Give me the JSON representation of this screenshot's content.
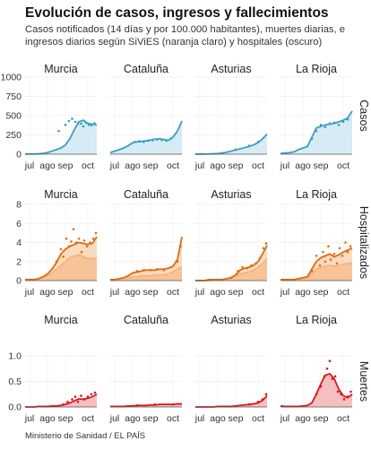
{
  "title": "Evolución de casos, ingresos y fallecimientos",
  "subtitle": "Casos notificados (14 días y por 100.000 habitantes), muertes diarias, e ingresos diarios según SiViES (naranja claro) y hospitales (oscuro)",
  "source": "Ministerio de Sanidad / EL PAÍS",
  "colors": {
    "casos": "#3a9fc0",
    "casos_fill": "#cfe8f1",
    "hosp_dark": "#e06c10",
    "hosp_light": "#f4b47f",
    "hosp_fill": "#f8cfa8",
    "muertes": "#d7191c",
    "muertes_fill": "#f6b3b5"
  },
  "chart_data": [
    {
      "type": "area",
      "row_label": "Casos",
      "x_ticks": [
        "jul",
        "ago",
        "sep",
        "oct"
      ],
      "y_ticks": [
        "0",
        "250",
        "500",
        "750",
        "1000"
      ],
      "ylim": [
        0,
        1000
      ],
      "panels": [
        {
          "region": "Murcia",
          "x": [
            0,
            10,
            20,
            30,
            40,
            50,
            60,
            70,
            80,
            90,
            100,
            110,
            120,
            130,
            140,
            150,
            160
          ],
          "values": [
            2,
            2,
            3,
            5,
            10,
            20,
            40,
            60,
            80,
            120,
            200,
            320,
            420,
            440,
            400,
            390,
            380
          ],
          "dots": [
            [
              75,
              300
            ],
            [
              90,
              380
            ],
            [
              98,
              430
            ],
            [
              105,
              460
            ],
            [
              112,
              420
            ],
            [
              118,
              400
            ],
            [
              125,
              395
            ],
            [
              130,
              360
            ],
            [
              136,
              410
            ],
            [
              142,
              380
            ],
            [
              148,
              375
            ],
            [
              155,
              400
            ]
          ]
        },
        {
          "region": "Cataluña",
          "x": [
            0,
            10,
            20,
            30,
            40,
            50,
            60,
            70,
            80,
            90,
            100,
            110,
            120,
            130,
            140,
            150,
            160
          ],
          "values": [
            20,
            40,
            60,
            80,
            110,
            150,
            160,
            165,
            175,
            185,
            195,
            200,
            190,
            180,
            220,
            300,
            430
          ],
          "dots": [
            [
              55,
              160
            ],
            [
              65,
              170
            ],
            [
              75,
              160
            ],
            [
              85,
              175
            ],
            [
              95,
              180
            ],
            [
              105,
              190
            ],
            [
              115,
              185
            ],
            [
              125,
              175
            ],
            [
              135,
              200
            ]
          ]
        },
        {
          "region": "Asturias",
          "x": [
            0,
            10,
            20,
            30,
            40,
            50,
            60,
            70,
            80,
            90,
            100,
            110,
            120,
            130,
            140,
            150,
            160
          ],
          "values": [
            1,
            1,
            2,
            3,
            5,
            8,
            15,
            25,
            40,
            55,
            70,
            85,
            100,
            120,
            150,
            200,
            260
          ],
          "dots": [
            [
              60,
              15
            ],
            [
              90,
              60
            ],
            [
              120,
              110
            ],
            [
              140,
              160
            ]
          ]
        },
        {
          "region": "La Rioja",
          "x": [
            0,
            10,
            20,
            30,
            40,
            50,
            60,
            70,
            80,
            90,
            100,
            110,
            120,
            130,
            140,
            150,
            160
          ],
          "values": [
            10,
            15,
            20,
            30,
            60,
            80,
            100,
            220,
            340,
            360,
            380,
            390,
            400,
            420,
            440,
            470,
            560
          ],
          "dots": [
            [
              70,
              200
            ],
            [
              80,
              300
            ],
            [
              90,
              380
            ],
            [
              100,
              350
            ],
            [
              110,
              400
            ],
            [
              120,
              410
            ],
            [
              130,
              380
            ],
            [
              140,
              420
            ],
            [
              150,
              450
            ]
          ]
        }
      ]
    },
    {
      "type": "area",
      "row_label": "Hospitalizados",
      "x_ticks": [
        "jul",
        "ago",
        "sep",
        "oct"
      ],
      "y_ticks": [
        "0",
        "2",
        "4",
        "6",
        "8"
      ],
      "ylim": [
        0,
        8
      ],
      "panels": [
        {
          "region": "Murcia",
          "x": [
            0,
            10,
            20,
            30,
            40,
            50,
            60,
            70,
            80,
            90,
            100,
            110,
            120,
            130,
            140,
            150,
            160
          ],
          "light": [
            0.1,
            0.1,
            0.1,
            0.2,
            0.3,
            0.5,
            0.8,
            1.2,
            1.6,
            2.0,
            2.4,
            2.6,
            2.7,
            2.5,
            2.3,
            2.3,
            2.4
          ],
          "dark": [
            0.1,
            0.1,
            0.1,
            0.2,
            0.4,
            0.7,
            1.2,
            1.9,
            2.8,
            3.3,
            3.6,
            3.8,
            4.0,
            3.9,
            3.8,
            3.9,
            4.6
          ],
          "dots": [
            [
              70,
              2.0
            ],
            [
              80,
              3.3
            ],
            [
              85,
              2.5
            ],
            [
              92,
              4.4
            ],
            [
              98,
              3.6
            ],
            [
              103,
              4.1
            ],
            [
              108,
              5.4
            ],
            [
              114,
              4.0
            ],
            [
              120,
              4.4
            ],
            [
              126,
              3.0
            ],
            [
              132,
              4.2
            ],
            [
              138,
              3.6
            ],
            [
              145,
              4.0
            ],
            [
              152,
              4.4
            ],
            [
              158,
              5.0
            ]
          ]
        },
        {
          "region": "Cataluña",
          "x": [
            0,
            10,
            20,
            30,
            40,
            50,
            60,
            70,
            80,
            90,
            100,
            110,
            120,
            130,
            140,
            150,
            160
          ],
          "light": [
            0.1,
            0.1,
            0.2,
            0.2,
            0.3,
            0.4,
            0.4,
            0.5,
            0.5,
            0.5,
            0.6,
            0.6,
            0.6,
            0.7,
            0.9,
            1.2,
            1.4
          ],
          "dark": [
            0.1,
            0.1,
            0.2,
            0.3,
            0.5,
            0.8,
            0.9,
            1.0,
            1.1,
            1.1,
            1.1,
            1.2,
            1.2,
            1.3,
            1.5,
            2.2,
            4.6
          ],
          "dots": [
            [
              60,
              1.0
            ],
            [
              75,
              1.1
            ],
            [
              90,
              1.1
            ],
            [
              105,
              1.2
            ],
            [
              120,
              1.1
            ],
            [
              135,
              1.4
            ],
            [
              150,
              2.0
            ],
            [
              157,
              3.6
            ]
          ]
        },
        {
          "region": "Asturias",
          "x": [
            0,
            10,
            20,
            30,
            40,
            50,
            60,
            70,
            80,
            90,
            100,
            110,
            120,
            130,
            140,
            150,
            160
          ],
          "light": [
            0.0,
            0.0,
            0.0,
            0.0,
            0.1,
            0.1,
            0.1,
            0.2,
            0.3,
            0.5,
            0.7,
            0.8,
            0.9,
            1.1,
            1.4,
            1.8,
            2.3
          ],
          "dark": [
            0.0,
            0.0,
            0.0,
            0.1,
            0.1,
            0.1,
            0.1,
            0.2,
            0.3,
            0.6,
            1.1,
            1.3,
            1.4,
            1.6,
            2.0,
            2.8,
            3.7
          ],
          "dots": [
            [
              80,
              0.3
            ],
            [
              95,
              1.0
            ],
            [
              105,
              1.4
            ],
            [
              115,
              1.3
            ],
            [
              125,
              1.6
            ],
            [
              135,
              1.8
            ],
            [
              145,
              2.4
            ],
            [
              152,
              3.4
            ],
            [
              158,
              3.9
            ]
          ]
        },
        {
          "region": "La Rioja",
          "x": [
            0,
            10,
            20,
            30,
            40,
            50,
            60,
            70,
            80,
            90,
            100,
            110,
            120,
            130,
            140,
            150,
            160
          ],
          "light": [
            0.1,
            0.1,
            0.1,
            0.1,
            0.2,
            0.2,
            0.3,
            0.8,
            1.2,
            1.4,
            1.5,
            1.6,
            1.5,
            1.6,
            1.7,
            1.8,
            1.8
          ],
          "dark": [
            0.1,
            0.1,
            0.1,
            0.1,
            0.2,
            0.3,
            0.4,
            1.2,
            2.0,
            2.4,
            2.6,
            2.8,
            2.5,
            2.7,
            3.0,
            3.2,
            3.4
          ],
          "dots": [
            [
              70,
              1.0
            ],
            [
              80,
              2.6
            ],
            [
              88,
              1.6
            ],
            [
              95,
              3.0
            ],
            [
              100,
              2.0
            ],
            [
              107,
              3.6
            ],
            [
              112,
              2.2
            ],
            [
              120,
              2.8
            ],
            [
              126,
              1.8
            ],
            [
              132,
              3.4
            ],
            [
              138,
              2.6
            ],
            [
              145,
              4.0
            ],
            [
              150,
              3.0
            ],
            [
              156,
              3.6
            ]
          ]
        }
      ]
    },
    {
      "type": "area",
      "row_label": "Muertes",
      "x_ticks": [
        "jul",
        "ago",
        "sep",
        "oct"
      ],
      "y_ticks": [
        "0.0",
        "0.5",
        "1.0"
      ],
      "ylim": [
        0,
        1.0
      ],
      "panels": [
        {
          "region": "Murcia",
          "x": [
            0,
            10,
            20,
            30,
            40,
            50,
            60,
            70,
            80,
            90,
            100,
            110,
            120,
            130,
            140,
            150,
            160
          ],
          "values": [
            0,
            0,
            0,
            0.01,
            0.01,
            0.01,
            0.02,
            0.02,
            0.03,
            0.05,
            0.08,
            0.12,
            0.16,
            0.15,
            0.17,
            0.2,
            0.25
          ],
          "dots": [
            [
              85,
              0.05
            ],
            [
              95,
              0.1
            ],
            [
              105,
              0.15
            ],
            [
              112,
              0.2
            ],
            [
              118,
              0.1
            ],
            [
              125,
              0.22
            ],
            [
              132,
              0.15
            ],
            [
              140,
              0.2
            ],
            [
              148,
              0.25
            ],
            [
              156,
              0.28
            ]
          ]
        },
        {
          "region": "Cataluña",
          "x": [
            0,
            10,
            20,
            30,
            40,
            50,
            60,
            70,
            80,
            90,
            100,
            110,
            120,
            130,
            140,
            150,
            160
          ],
          "values": [
            0.01,
            0.01,
            0.01,
            0.01,
            0.02,
            0.02,
            0.03,
            0.03,
            0.03,
            0.04,
            0.04,
            0.05,
            0.05,
            0.05,
            0.05,
            0.06,
            0.06
          ],
          "dots": [
            [
              60,
              0.03
            ],
            [
              100,
              0.05
            ],
            [
              140,
              0.05
            ]
          ]
        },
        {
          "region": "Asturias",
          "x": [
            0,
            10,
            20,
            30,
            40,
            50,
            60,
            70,
            80,
            90,
            100,
            110,
            120,
            130,
            140,
            150,
            160
          ],
          "values": [
            0,
            0,
            0,
            0,
            0,
            0.01,
            0.01,
            0.01,
            0.01,
            0.02,
            0.03,
            0.04,
            0.05,
            0.06,
            0.08,
            0.13,
            0.22
          ],
          "dots": [
            [
              120,
              0.05
            ],
            [
              140,
              0.1
            ],
            [
              150,
              0.15
            ],
            [
              158,
              0.25
            ]
          ]
        },
        {
          "region": "La Rioja",
          "x": [
            0,
            10,
            20,
            30,
            40,
            50,
            60,
            70,
            80,
            90,
            100,
            110,
            120,
            130,
            140,
            150,
            160
          ],
          "values": [
            0.02,
            0.01,
            0.01,
            0.01,
            0.01,
            0.02,
            0.03,
            0.08,
            0.25,
            0.45,
            0.62,
            0.65,
            0.55,
            0.35,
            0.22,
            0.18,
            0.25
          ],
          "dots": [
            [
              80,
              0.25
            ],
            [
              90,
              0.4
            ],
            [
              98,
              0.6
            ],
            [
              104,
              0.75
            ],
            [
              110,
              0.9
            ],
            [
              116,
              0.55
            ],
            [
              122,
              0.6
            ],
            [
              128,
              0.3
            ],
            [
              135,
              0.25
            ],
            [
              142,
              0.15
            ],
            [
              150,
              0.2
            ],
            [
              157,
              0.3
            ]
          ]
        }
      ]
    }
  ]
}
